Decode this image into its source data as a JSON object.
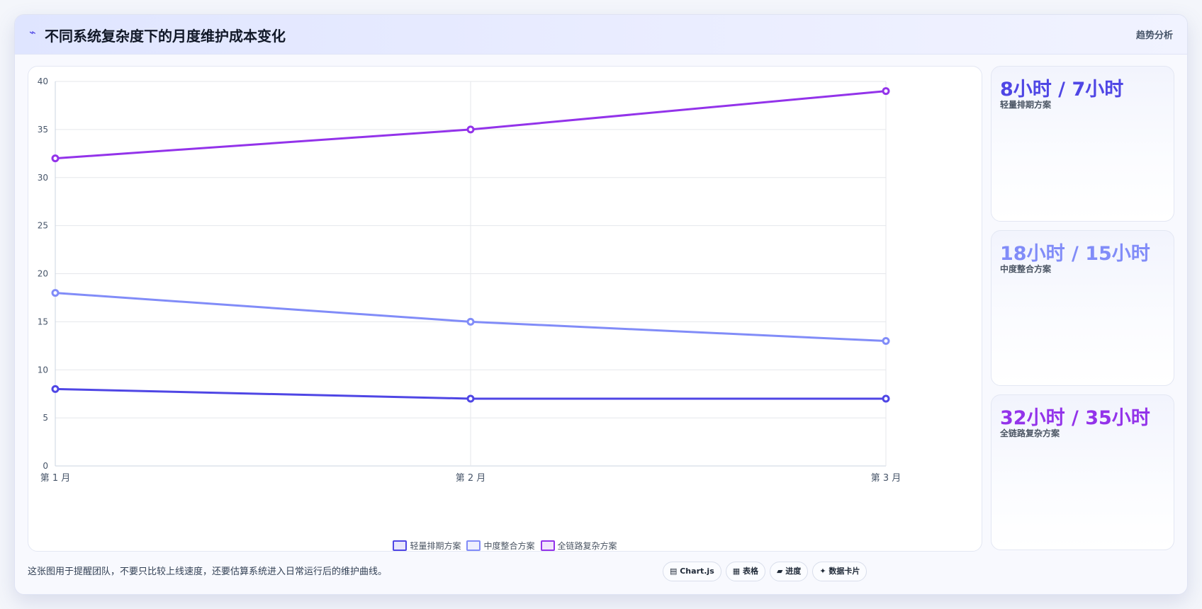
{
  "header": {
    "icon": "chart-icon",
    "title": "不同系统复杂度下的月度维护成本变化",
    "tag": "趋势分析"
  },
  "colors": {
    "series1": "#4f46e5",
    "series2": "#818cf8",
    "series3": "#9333ea",
    "grid": "#e5e7eb",
    "axis_text": "#475569"
  },
  "chart_data": {
    "type": "line",
    "categories": [
      "第 1 月",
      "第 2 月",
      "第 3 月"
    ],
    "series": [
      {
        "name": "轻量排期方案",
        "values": [
          8,
          7,
          7
        ],
        "color": "#4f46e5"
      },
      {
        "name": "中度整合方案",
        "values": [
          18,
          15,
          13
        ],
        "color": "#818cf8"
      },
      {
        "name": "全链路复杂方案",
        "values": [
          32,
          35,
          39
        ],
        "color": "#9333ea"
      }
    ],
    "ylim": [
      0,
      40
    ],
    "yticks": [
      0,
      5,
      10,
      15,
      20,
      25,
      30,
      35,
      40
    ],
    "grid": true,
    "legend_position": "bottom"
  },
  "cards": [
    {
      "value": "8小时 / 7小时",
      "label": "轻量排期方案",
      "color": "#4f46e5"
    },
    {
      "value": "18小时 / 15小时",
      "label": "中度整合方案",
      "color": "#818cf8"
    },
    {
      "value": "32小时 / 35小时",
      "label": "全链路复杂方案",
      "color": "#9333ea"
    }
  ],
  "footer": {
    "note": "这张图用于提醒团队，不要只比较上线速度，还要估算系统进入日常运行后的维护曲线。",
    "pills": [
      {
        "icon": "▤",
        "label": "Chart.js"
      },
      {
        "icon": "▦",
        "label": "表格"
      },
      {
        "icon": "▰",
        "label": "进度"
      },
      {
        "icon": "✦",
        "label": "数据卡片"
      }
    ]
  }
}
